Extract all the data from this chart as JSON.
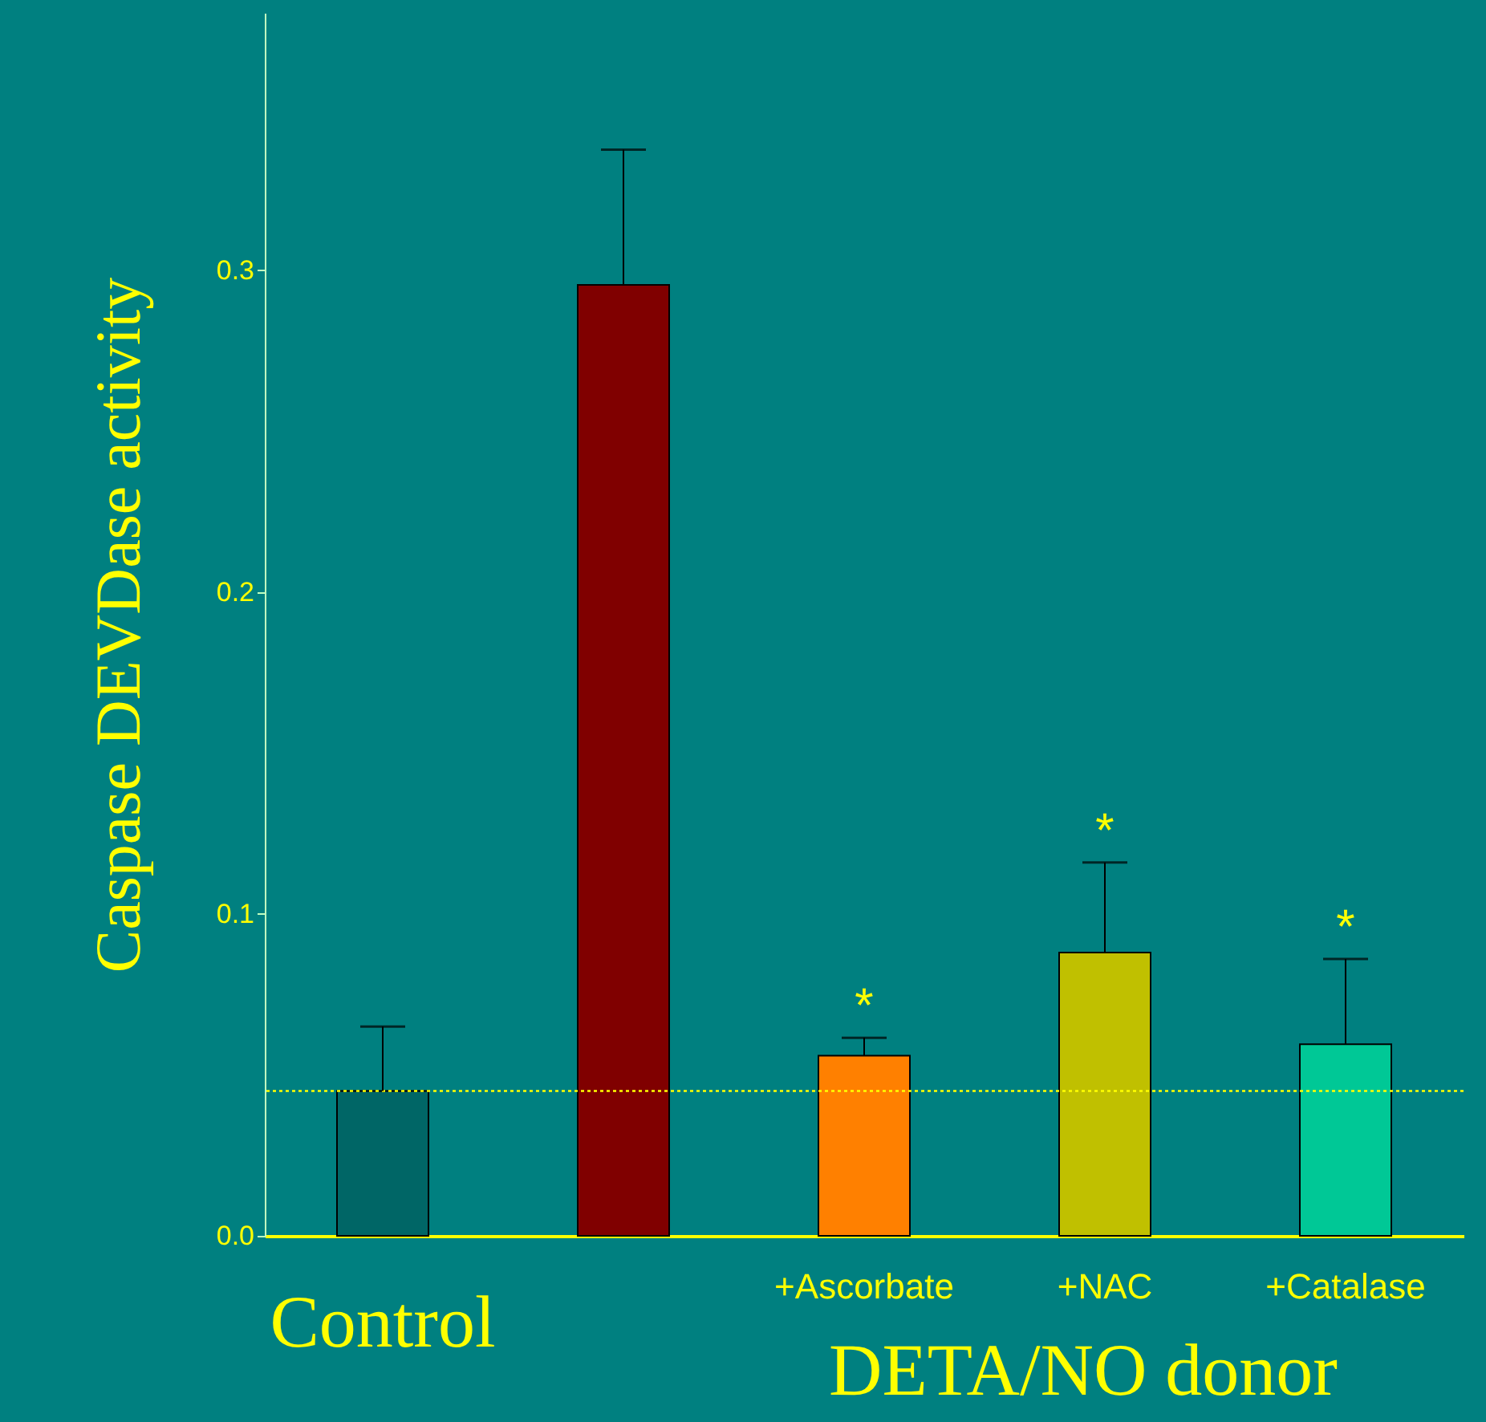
{
  "chart_data": {
    "type": "bar",
    "ylabel": "Caspase DEVDase activity",
    "categories": [
      "Control",
      null,
      "+Ascorbate",
      "+NAC",
      "+Catalase"
    ],
    "values": [
      0.045,
      0.2955,
      0.056,
      0.088,
      0.0595
    ],
    "colors": [
      "#006666",
      "#800000",
      "#ff8000",
      "#c0c000",
      "#00c896"
    ],
    "errors": [
      [
        0.045,
        0.065
      ],
      [
        0.2955,
        0.3375
      ],
      [
        0.056,
        0.0615
      ],
      [
        0.088,
        0.116
      ],
      [
        0.0595,
        0.086
      ]
    ],
    "ylim": [
      0,
      0.38
    ],
    "yticks": [
      {
        "value": 0,
        "label": "0.0"
      },
      {
        "value": 0.1,
        "label": "0.1"
      },
      {
        "value": 0.2,
        "label": "0.2"
      },
      {
        "value": 0.3,
        "label": "0.3"
      }
    ],
    "ref_lines": [
      {
        "axis": "y",
        "value": 0.045,
        "color": "#ffff00",
        "line_style": "dotted"
      }
    ],
    "annotations": [
      "*",
      "*",
      "*",
      "DETA/NO donor"
    ],
    "grid": false
  }
}
